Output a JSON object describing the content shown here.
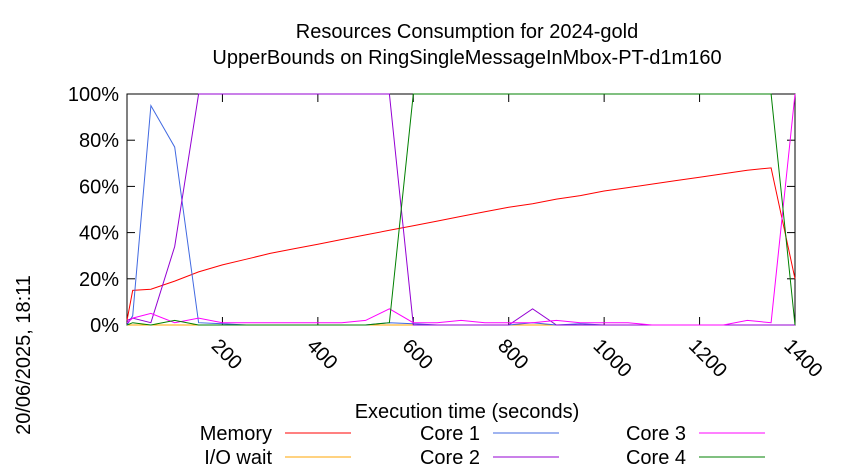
{
  "chart_data": {
    "type": "line",
    "title_line1": "Resources Consumption for 2024-gold",
    "title_line2": "UpperBounds on RingSingleMessageInMbox-PT-d1m160",
    "xlabel": "Execution time (seconds)",
    "ylabel": "",
    "xlim": [
      0,
      1400
    ],
    "ylim": [
      0,
      100
    ],
    "xticks": [
      200,
      400,
      600,
      800,
      1000,
      1200,
      1400
    ],
    "yticks": [
      0,
      20,
      40,
      60,
      80,
      100
    ],
    "ytick_labels": [
      "0%",
      "20%",
      "40%",
      "60%",
      "80%",
      "100%"
    ],
    "grid": false,
    "legend_placement": "bottom",
    "timestamp": "20/06/2025, 18:11",
    "series": [
      {
        "name": "Memory",
        "color": "#ff0000",
        "x": [
          0,
          12,
          50,
          100,
          150,
          200,
          250,
          300,
          350,
          400,
          450,
          500,
          550,
          600,
          650,
          700,
          750,
          800,
          850,
          900,
          950,
          1000,
          1050,
          1100,
          1150,
          1200,
          1250,
          1300,
          1350,
          1400
        ],
        "y": [
          2,
          15,
          15.5,
          19,
          23,
          26,
          28.5,
          31,
          33,
          35,
          37,
          39,
          41,
          43,
          45,
          47,
          49,
          51,
          52.5,
          54.5,
          56,
          58,
          59.5,
          61,
          62.5,
          64,
          65.5,
          67,
          68,
          20
        ]
      },
      {
        "name": "I/O wait",
        "color": "#ffa500",
        "x": [
          0,
          50,
          100,
          150,
          200,
          250,
          300,
          350,
          400,
          450,
          500,
          550,
          600,
          650,
          700,
          750,
          800,
          850,
          900,
          950,
          1000,
          1050,
          1100,
          1150,
          1200,
          1250,
          1300,
          1350,
          1400
        ],
        "y": [
          0,
          0,
          0,
          0,
          0,
          0,
          0,
          0,
          0,
          0,
          0,
          0,
          0,
          0,
          0,
          0,
          0,
          0,
          0,
          0,
          0,
          0,
          0,
          0,
          0,
          0,
          0,
          0,
          0
        ]
      },
      {
        "name": "Core 1",
        "color": "#4169e1",
        "x": [
          0,
          12,
          50,
          100,
          150,
          200,
          250,
          300,
          350,
          400,
          450,
          500,
          550,
          600,
          650,
          700,
          750,
          800,
          850,
          900,
          950,
          1000,
          1050,
          1100,
          1150,
          1200,
          1250,
          1300,
          1350,
          1400
        ],
        "y": [
          0,
          4,
          95,
          77,
          1,
          0.5,
          0,
          0,
          0,
          0,
          0,
          0,
          1,
          0.5,
          0,
          0,
          0,
          0,
          1,
          0,
          0.5,
          0,
          0,
          0,
          0,
          0,
          0,
          0,
          0,
          0
        ]
      },
      {
        "name": "Core 2",
        "color": "#9400d3",
        "x": [
          0,
          12,
          50,
          100,
          150,
          200,
          250,
          300,
          350,
          400,
          450,
          500,
          550,
          600,
          650,
          700,
          750,
          800,
          850,
          900,
          950,
          1000,
          1050,
          1100,
          1150,
          1200,
          1250,
          1300,
          1350,
          1400
        ],
        "y": [
          2,
          3,
          1,
          34,
          100,
          100,
          100,
          100,
          100,
          100,
          100,
          100,
          100,
          0,
          0,
          0,
          0,
          0,
          7,
          0,
          0,
          0,
          0,
          0,
          0,
          0,
          0,
          0,
          0,
          0
        ]
      },
      {
        "name": "Core 3",
        "color": "#ff00ff",
        "x": [
          0,
          12,
          50,
          100,
          150,
          200,
          250,
          300,
          350,
          400,
          450,
          500,
          550,
          600,
          650,
          700,
          750,
          800,
          850,
          900,
          950,
          1000,
          1050,
          1100,
          1150,
          1200,
          1250,
          1300,
          1350,
          1400
        ],
        "y": [
          1,
          3,
          5,
          1,
          3,
          1,
          1,
          1,
          1,
          1,
          1,
          2,
          7,
          1,
          1,
          2,
          1,
          1,
          1,
          2,
          1,
          1,
          1,
          0,
          0,
          0,
          0,
          2,
          1,
          100
        ]
      },
      {
        "name": "Core 4",
        "color": "#008000",
        "x": [
          0,
          12,
          50,
          100,
          150,
          200,
          250,
          300,
          350,
          400,
          450,
          500,
          550,
          600,
          650,
          700,
          750,
          800,
          850,
          900,
          950,
          1000,
          1050,
          1100,
          1150,
          1200,
          1250,
          1300,
          1350,
          1400
        ],
        "y": [
          0,
          1,
          0,
          2,
          0,
          0,
          0,
          0,
          0,
          0,
          0,
          0,
          1,
          100,
          100,
          100,
          100,
          100,
          100,
          100,
          100,
          100,
          100,
          100,
          100,
          100,
          100,
          100,
          100,
          0
        ]
      }
    ]
  }
}
